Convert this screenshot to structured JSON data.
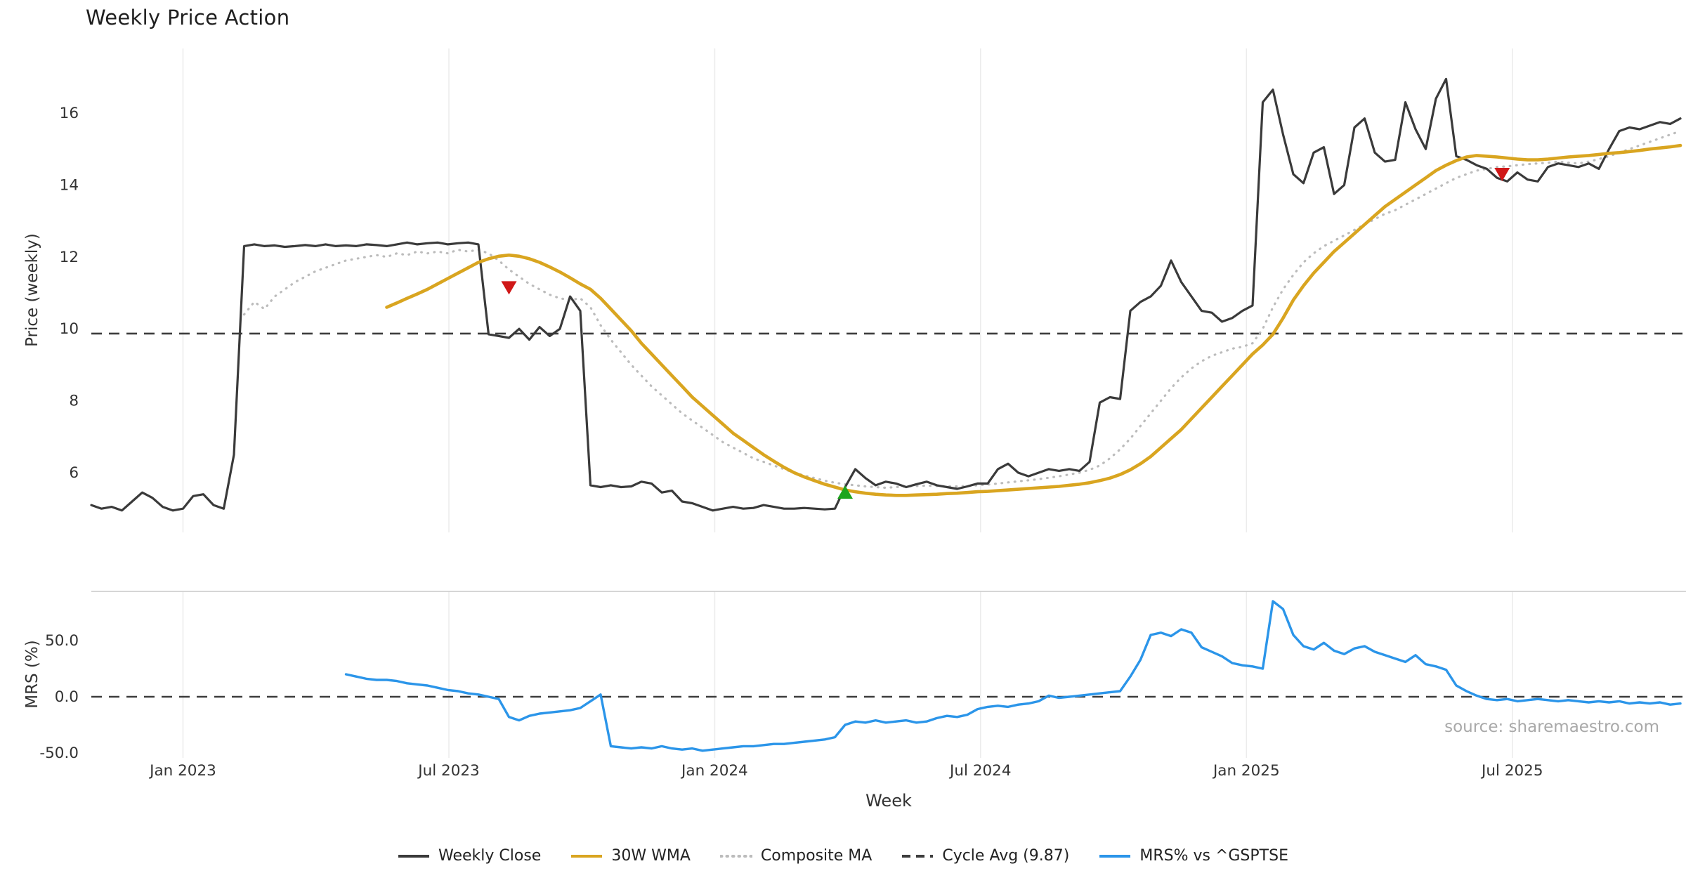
{
  "title": "Weekly Price Action",
  "source": "source: sharemaestro.com",
  "colors": {
    "weekly_close": "#3a3a3a",
    "wma": "#d9a520",
    "composite": "#bcbcbc",
    "mrs": "#2b95e9",
    "sell": "#d01818",
    "buy": "#1ca51c",
    "grid": "#ececec",
    "axis_text": "#333333",
    "dashed_line": "#3d3d3d",
    "separator": "#c9c9c9",
    "source_text": "#a9a9a9"
  },
  "legend": [
    {
      "label": "Weekly Close",
      "color": "#3a3a3a",
      "style": "solid"
    },
    {
      "label": "30W WMA",
      "color": "#d9a520",
      "style": "solid"
    },
    {
      "label": "Composite MA",
      "color": "#bcbcbc",
      "style": "dotted"
    },
    {
      "label": "Cycle Avg (9.87)",
      "color": "#3d3d3d",
      "style": "dashed"
    },
    {
      "label": "MRS% vs ^GSPTSE",
      "color": "#2b95e9",
      "style": "solid"
    }
  ],
  "chart_data": [
    {
      "type": "line",
      "panel": "price",
      "title": "Weekly Price Action",
      "xlabel": "Week",
      "ylabel": "Price (weekly)",
      "x_tick_labels": [
        "Jan 2023",
        "Jul 2023",
        "Jan 2024",
        "Jul 2024",
        "Jan 2025",
        "Jul 2025"
      ],
      "x_tick_weeks": [
        9,
        35.1,
        61.2,
        87.3,
        113.4,
        139.5
      ],
      "y_ticks": [
        6,
        8,
        10,
        12,
        14,
        16
      ],
      "ylim": [
        4.3,
        17.8
      ],
      "grid": true,
      "cycle_avg": 9.87,
      "signals": [
        {
          "week": 41,
          "price": 11.15,
          "type": "sell"
        },
        {
          "week": 74,
          "price": 5.45,
          "type": "buy"
        },
        {
          "week": 138.5,
          "price": 14.3,
          "type": "sell"
        }
      ],
      "series": [
        {
          "name": "Weekly Close",
          "color": "#3a3a3a",
          "style": "solid",
          "width": 3.2,
          "start_week": 0,
          "values": [
            5.1,
            5.0,
            5.05,
            4.95,
            5.2,
            5.45,
            5.3,
            5.05,
            4.95,
            5.0,
            5.35,
            5.4,
            5.1,
            5.0,
            6.5,
            12.3,
            12.35,
            12.3,
            12.32,
            12.28,
            12.3,
            12.33,
            12.3,
            12.35,
            12.3,
            12.32,
            12.3,
            12.35,
            12.33,
            12.3,
            12.35,
            12.4,
            12.35,
            12.38,
            12.4,
            12.35,
            12.38,
            12.4,
            12.35,
            9.85,
            9.8,
            9.75,
            10.0,
            9.7,
            10.05,
            9.8,
            10.0,
            10.9,
            10.5,
            5.65,
            5.6,
            5.65,
            5.6,
            5.62,
            5.75,
            5.7,
            5.45,
            5.5,
            5.2,
            5.15,
            5.05,
            4.95,
            5.0,
            5.05,
            5.0,
            5.02,
            5.1,
            5.05,
            5.0,
            5.0,
            5.02,
            5.0,
            4.98,
            5.0,
            5.6,
            6.1,
            5.85,
            5.65,
            5.75,
            5.7,
            5.6,
            5.68,
            5.75,
            5.65,
            5.6,
            5.55,
            5.62,
            5.7,
            5.7,
            6.1,
            6.25,
            6.0,
            5.9,
            6.0,
            6.1,
            6.05,
            6.1,
            6.05,
            6.3,
            7.95,
            8.1,
            8.05,
            10.5,
            10.75,
            10.9,
            11.2,
            11.9,
            11.3,
            10.9,
            10.5,
            10.45,
            10.2,
            10.3,
            10.5,
            10.65,
            16.3,
            16.65,
            15.4,
            14.3,
            14.05,
            14.9,
            15.05,
            13.75,
            14.0,
            15.6,
            15.85,
            14.9,
            14.65,
            14.7,
            16.3,
            15.55,
            15.0,
            16.4,
            16.95,
            14.8,
            14.7,
            14.55,
            14.45,
            14.2,
            14.1,
            14.35,
            14.15,
            14.1,
            14.5,
            14.6,
            14.55,
            14.5,
            14.6,
            14.45,
            15.0,
            15.5,
            15.6,
            15.55,
            15.65,
            15.75,
            15.7,
            15.85
          ]
        },
        {
          "name": "30W WMA",
          "color": "#d9a520",
          "style": "solid",
          "width": 4.6,
          "start_week": 29,
          "values": [
            10.6,
            10.72,
            10.85,
            10.97,
            11.1,
            11.25,
            11.4,
            11.55,
            11.7,
            11.85,
            11.95,
            12.02,
            12.05,
            12.02,
            11.95,
            11.85,
            11.72,
            11.58,
            11.42,
            11.25,
            11.1,
            10.85,
            10.55,
            10.25,
            9.95,
            9.6,
            9.3,
            9.0,
            8.7,
            8.4,
            8.1,
            7.85,
            7.6,
            7.35,
            7.1,
            6.9,
            6.7,
            6.5,
            6.32,
            6.15,
            6.0,
            5.88,
            5.78,
            5.68,
            5.6,
            5.52,
            5.47,
            5.43,
            5.4,
            5.38,
            5.37,
            5.37,
            5.38,
            5.39,
            5.4,
            5.42,
            5.43,
            5.45,
            5.47,
            5.48,
            5.5,
            5.52,
            5.54,
            5.56,
            5.58,
            5.6,
            5.62,
            5.65,
            5.68,
            5.72,
            5.78,
            5.85,
            5.95,
            6.08,
            6.25,
            6.45,
            6.7,
            6.95,
            7.2,
            7.5,
            7.8,
            8.1,
            8.4,
            8.7,
            9.0,
            9.3,
            9.55,
            9.85,
            10.3,
            10.8,
            11.2,
            11.55,
            11.85,
            12.15,
            12.4,
            12.65,
            12.9,
            13.15,
            13.4,
            13.6,
            13.8,
            14.0,
            14.2,
            14.4,
            14.55,
            14.68,
            14.78,
            14.82,
            14.8,
            14.78,
            14.75,
            14.72,
            14.7,
            14.7,
            14.72,
            14.75,
            14.78,
            14.8,
            14.82,
            14.85,
            14.88,
            14.9,
            14.93,
            14.96,
            15.0,
            15.03,
            15.06,
            15.1
          ]
        },
        {
          "name": "Composite MA",
          "color": "#bcbcbc",
          "style": "dotted",
          "width": 3.2,
          "start_week": 15,
          "values": [
            10.4,
            10.75,
            10.55,
            10.9,
            11.1,
            11.3,
            11.45,
            11.6,
            11.7,
            11.8,
            11.9,
            11.95,
            12.0,
            12.05,
            12.0,
            12.1,
            12.05,
            12.15,
            12.1,
            12.15,
            12.1,
            12.2,
            12.15,
            12.2,
            12.1,
            11.9,
            11.65,
            11.45,
            11.25,
            11.1,
            10.95,
            10.85,
            10.8,
            10.85,
            10.6,
            10.1,
            9.7,
            9.35,
            9.0,
            8.7,
            8.4,
            8.15,
            7.9,
            7.65,
            7.45,
            7.25,
            7.05,
            6.85,
            6.7,
            6.55,
            6.4,
            6.3,
            6.2,
            6.1,
            6.0,
            5.92,
            5.85,
            5.78,
            5.72,
            5.68,
            5.65,
            5.62,
            5.6,
            5.58,
            5.6,
            5.62,
            5.63,
            5.64,
            5.63,
            5.62,
            5.62,
            5.63,
            5.65,
            5.67,
            5.7,
            5.73,
            5.76,
            5.79,
            5.82,
            5.86,
            5.9,
            5.95,
            6.0,
            6.08,
            6.2,
            6.4,
            6.65,
            6.95,
            7.3,
            7.65,
            8.0,
            8.35,
            8.65,
            8.9,
            9.1,
            9.25,
            9.35,
            9.45,
            9.5,
            9.6,
            10.0,
            10.6,
            11.1,
            11.5,
            11.85,
            12.1,
            12.3,
            12.45,
            12.6,
            12.75,
            12.9,
            13.05,
            13.2,
            13.3,
            13.45,
            13.6,
            13.75,
            13.9,
            14.05,
            14.2,
            14.3,
            14.4,
            14.45,
            14.5,
            14.52,
            14.55,
            14.58,
            14.6,
            14.62,
            14.65,
            14.62,
            14.6,
            14.65,
            14.72,
            14.8,
            14.9,
            15.0,
            15.1,
            15.2,
            15.3,
            15.4,
            15.5
          ]
        }
      ]
    },
    {
      "type": "line",
      "panel": "mrs",
      "ylabel": "MRS (%)",
      "y_ticks": [
        -50.0,
        0.0,
        50.0
      ],
      "ylim": [
        -56,
        94
      ],
      "zero_line": 0,
      "series": [
        {
          "name": "MRS% vs ^GSPTSE",
          "color": "#2b95e9",
          "style": "solid",
          "width": 3.4,
          "start_week": 25,
          "values": [
            20,
            18,
            16,
            15,
            15,
            14,
            12,
            11,
            10,
            8,
            6,
            5,
            3,
            2,
            0,
            -2,
            -18,
            -21,
            -17,
            -15,
            -14,
            -13,
            -12,
            -10,
            -4,
            2,
            -44,
            -45,
            -46,
            -45,
            -46,
            -44,
            -46,
            -47,
            -46,
            -48,
            -47,
            -46,
            -45,
            -44,
            -44,
            -43,
            -42,
            -42,
            -41,
            -40,
            -39,
            -38,
            -36,
            -25,
            -22,
            -23,
            -21,
            -23,
            -22,
            -21,
            -23,
            -22,
            -19,
            -17,
            -18,
            -16,
            -11,
            -9,
            -8,
            -9,
            -7,
            -6,
            -4,
            1,
            -1,
            0,
            1,
            2,
            3,
            4,
            5,
            18,
            33,
            55,
            57,
            54,
            60,
            57,
            44,
            40,
            36,
            30,
            28,
            27,
            25,
            85,
            78,
            55,
            45,
            42,
            48,
            41,
            38,
            43,
            45,
            40,
            37,
            34,
            31,
            37,
            29,
            27,
            24,
            10,
            5,
            1,
            -2,
            -3,
            -2,
            -4,
            -3,
            -2,
            -3,
            -4,
            -3,
            -4,
            -5,
            -4,
            -5,
            -4,
            -6,
            -5,
            -6,
            -5,
            -7,
            -6
          ]
        }
      ]
    }
  ]
}
